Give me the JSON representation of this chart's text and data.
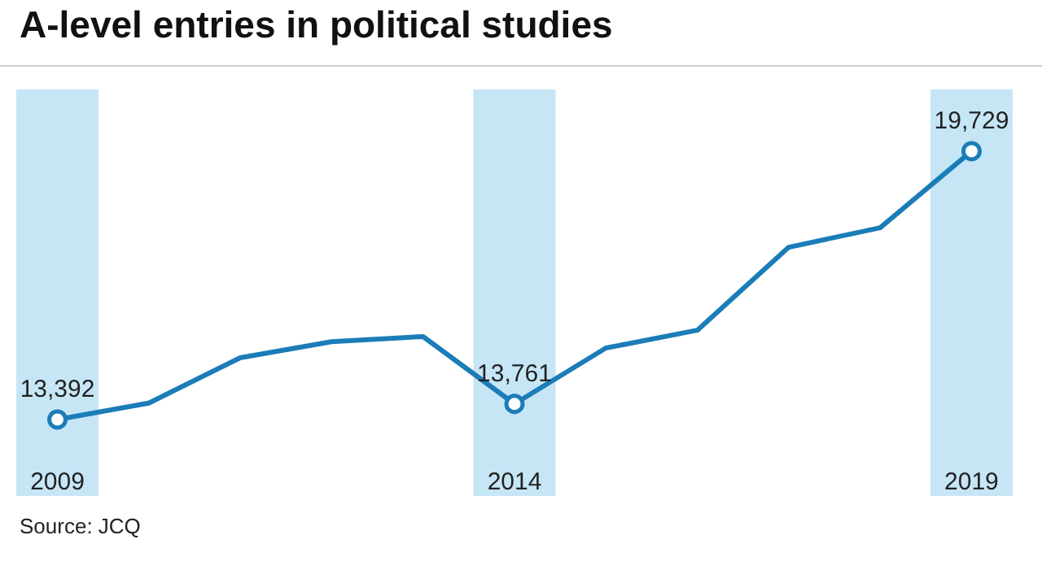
{
  "chart_data": {
    "type": "line",
    "title": "A-level entries in political studies",
    "categories": [
      "2009",
      null,
      null,
      null,
      null,
      "2014",
      null,
      null,
      null,
      null,
      "2019"
    ],
    "series": [
      {
        "color": "#1b7db8",
        "values": [
          13392,
          13780,
          14850,
          15230,
          15350,
          13761,
          15080,
          15500,
          17460,
          17920,
          19729
        ],
        "value_labels": [
          "13,392",
          null,
          null,
          null,
          null,
          "13,761",
          null,
          null,
          null,
          null,
          "19,729"
        ]
      }
    ],
    "bands": [
      {
        "axis": "x",
        "from": "2009",
        "to": "2009",
        "color": "#c6e6f6"
      },
      {
        "axis": "x",
        "from": "2014",
        "to": "2014",
        "color": "#c6e6f6"
      },
      {
        "axis": "x",
        "from": "2019",
        "to": "2019",
        "color": "#c6e6f6"
      }
    ],
    "line_style": "solid",
    "annotations": [
      "Source: JCQ"
    ]
  }
}
